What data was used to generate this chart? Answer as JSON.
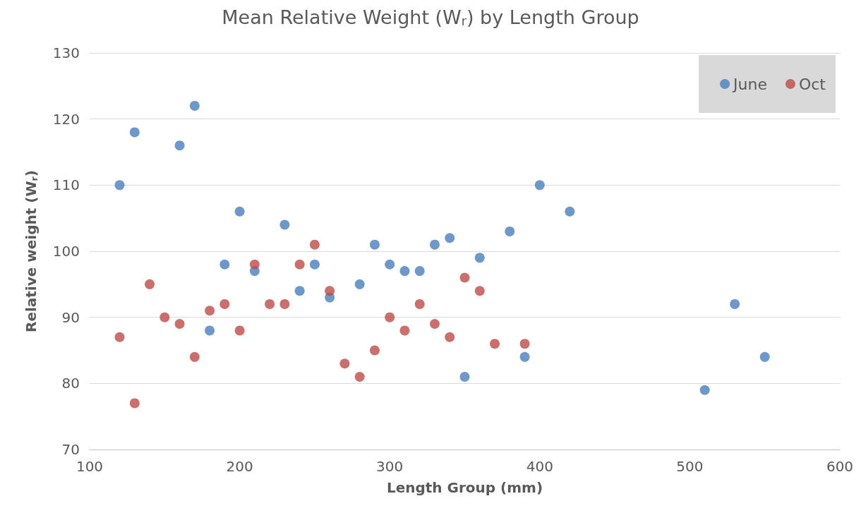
{
  "chart_data": {
    "type": "scatter",
    "title": "Mean Relative Weight (W$_{r}$) by Length Group",
    "xlabel": "Length Group (mm)",
    "ylabel": "Relative weight (W$_{r}$)",
    "xlim": [
      100,
      600
    ],
    "xticks": [
      100,
      200,
      300,
      400,
      500,
      600
    ],
    "ylim": [
      70,
      130
    ],
    "yticks": [
      70,
      80,
      90,
      100,
      110,
      120,
      130
    ],
    "grid": "y",
    "legend": "top right",
    "marker": "circle",
    "series": [
      {
        "name": "June",
        "color": "#4a7ebb",
        "x": [
          120,
          130,
          160,
          170,
          180,
          190,
          200,
          210,
          230,
          240,
          250,
          260,
          280,
          290,
          300,
          310,
          320,
          330,
          340,
          350,
          360,
          380,
          390,
          400,
          420,
          510,
          530,
          550
        ],
        "values": [
          110,
          118,
          116,
          122,
          88,
          98,
          106,
          97,
          104,
          94,
          98,
          93,
          95,
          101,
          98,
          97,
          97,
          101,
          102,
          81,
          99,
          103,
          84,
          110,
          106,
          79,
          92,
          84
        ]
      },
      {
        "name": "Oct",
        "color": "#be4b48",
        "x": [
          120,
          130,
          140,
          150,
          160,
          170,
          180,
          190,
          200,
          210,
          220,
          230,
          240,
          250,
          260,
          270,
          280,
          290,
          300,
          310,
          320,
          330,
          340,
          350,
          360,
          370,
          390
        ],
        "values": [
          87,
          77,
          95,
          90,
          89,
          84,
          91,
          92,
          88,
          98,
          92,
          92,
          98,
          101,
          94,
          83,
          81,
          85,
          90,
          88,
          92,
          89,
          87,
          96,
          94,
          86,
          86
        ]
      }
    ]
  }
}
